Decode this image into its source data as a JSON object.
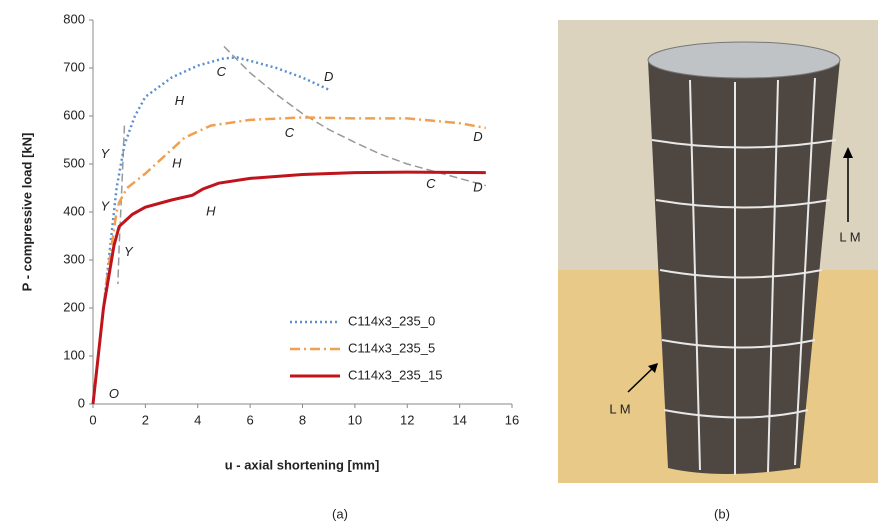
{
  "chart_data": {
    "type": "line",
    "xlabel": "u - axial shortening [mm]",
    "ylabel": "P - compressive load [kN]",
    "xlim": [
      0,
      16
    ],
    "xticks": [
      0,
      2,
      4,
      6,
      8,
      10,
      12,
      14,
      16
    ],
    "ylim": [
      0,
      800
    ],
    "yticks": [
      0,
      100,
      200,
      300,
      400,
      500,
      600,
      700,
      800
    ],
    "legend": "lower right",
    "series": [
      {
        "name": "C114x3_235_0",
        "color": "#5b8fd0",
        "style": "dotted",
        "x": [
          0,
          0.3,
          0.6,
          0.9,
          1.2,
          1.6,
          2,
          3,
          4,
          5,
          5.5,
          6,
          7,
          8,
          9
        ],
        "values": [
          0,
          150,
          300,
          450,
          540,
          600,
          640,
          680,
          705,
          720,
          722,
          715,
          700,
          680,
          655
        ]
      },
      {
        "name": "C114x3_235_5",
        "color": "#f0a050",
        "style": "dashdot",
        "x": [
          0,
          0.5,
          0.9,
          1,
          1.3,
          2,
          3,
          3.5,
          4.5,
          6,
          8,
          10,
          12,
          13,
          14,
          15
        ],
        "values": [
          0,
          250,
          400,
          420,
          450,
          480,
          530,
          555,
          580,
          592,
          597,
          595,
          595,
          590,
          585,
          575
        ]
      },
      {
        "name": "C114x3_235_15",
        "color": "#c0141c",
        "style": "solid",
        "x": [
          0,
          0.4,
          0.8,
          1,
          1.5,
          2,
          3,
          3.8,
          4.2,
          4.8,
          6,
          8,
          10,
          12,
          15
        ],
        "values": [
          0,
          200,
          330,
          370,
          395,
          410,
          425,
          435,
          448,
          460,
          470,
          478,
          482,
          483,
          482
        ]
      }
    ],
    "guides": [
      {
        "color": "#999999",
        "x": [
          5,
          6,
          7,
          8,
          9,
          10,
          11,
          12,
          13,
          14,
          15
        ],
        "values": [
          745,
          690,
          645,
          605,
          572,
          545,
          520,
          500,
          485,
          470,
          455
        ]
      },
      {
        "color": "#999999",
        "x": [
          1.2,
          1.1,
          1,
          0.95
        ],
        "values": [
          580,
          450,
          330,
          250
        ]
      }
    ],
    "annotations": [
      {
        "text": "O",
        "x": 0.8,
        "y": 20
      },
      {
        "text": "Y",
        "x": 0.45,
        "y": 520
      },
      {
        "text": "Y",
        "x": 0.45,
        "y": 410
      },
      {
        "text": "Y",
        "x": 1.35,
        "y": 315
      },
      {
        "text": "H",
        "x": 3.3,
        "y": 630
      },
      {
        "text": "H",
        "x": 3.2,
        "y": 500
      },
      {
        "text": "H",
        "x": 4.5,
        "y": 400
      },
      {
        "text": "C",
        "x": 4.9,
        "y": 690
      },
      {
        "text": "C",
        "x": 7.5,
        "y": 563
      },
      {
        "text": "C",
        "x": 12.9,
        "y": 457
      },
      {
        "text": "D",
        "x": 9,
        "y": 680
      },
      {
        "text": "D",
        "x": 14.7,
        "y": 555
      },
      {
        "text": "D",
        "x": 14.7,
        "y": 450
      }
    ]
  },
  "photo": {
    "labels": [
      "L M",
      "L M"
    ]
  },
  "captions": [
    "(a)",
    "(b)"
  ]
}
